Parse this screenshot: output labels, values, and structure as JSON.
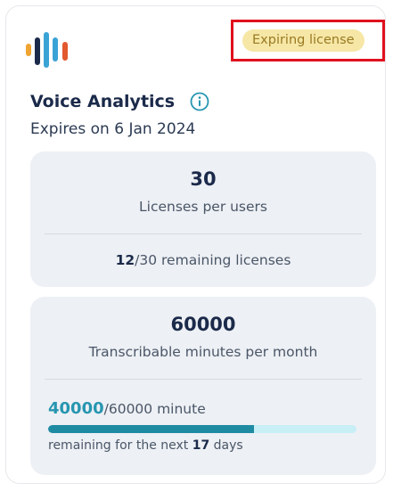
{
  "product": {
    "name": "Voice Analytics",
    "expires": "Expires on 6 Jan 2024",
    "status_badge": "Expiring license"
  },
  "licenses": {
    "total": "30",
    "label": "Licenses per users",
    "remaining": "12",
    "remaining_suffix": "/30 remaining licenses"
  },
  "minutes": {
    "total": "60000",
    "label": "Transcribable minutes per month",
    "remaining": "40000",
    "remaining_suffix": "/60000 minute",
    "progress_fraction": 0.6667,
    "days_prefix": "remaining for the next ",
    "days": "17",
    "days_suffix": " days"
  },
  "colors": {
    "badge_bg": "#f6e7a6",
    "badge_text": "#9a7a22",
    "highlight_border": "#e0101e",
    "accent": "#2796b0",
    "progress_fill": "#1f8ba3",
    "progress_track": "#c8eef6",
    "panel_bg": "#edf0f4"
  },
  "icons": {
    "logo": "voice-bars-logo",
    "info": "info-icon"
  }
}
